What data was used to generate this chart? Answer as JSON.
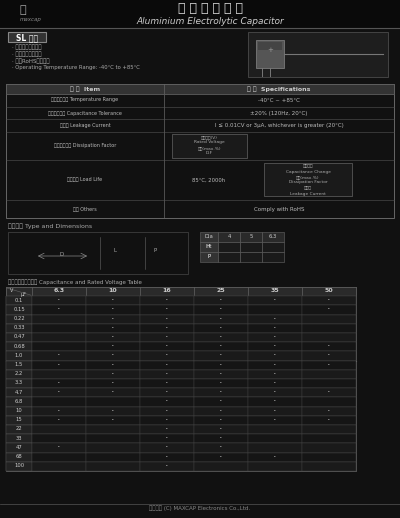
{
  "bg_color": "#1a1a1a",
  "page_bg": "#111111",
  "white": "#ffffff",
  "light_gray": "#e0e0e0",
  "mid_gray": "#888888",
  "dark_gray": "#444444",
  "table_header_bg": "#555555",
  "table_row_bg": "#222222",
  "table_border": "#666666",
  "text_color": "#cccccc",
  "title_cn": "醒 電 解 電 容 器",
  "title_en": "Aluminium Electrolytic Capacitor",
  "brand_cn": "進",
  "brand_en": "maxcap",
  "series": "SL 系列",
  "features": [
    "‧ 高信類性，長寳命",
    "‧ 小型化，標準系列",
    "‧ 符合RoHS環保規範"
  ],
  "feature4": "‧ Operating Temperature Range: -40°C to +85°C",
  "spec_item_header": "項 目  Item",
  "spec_spec_header": "規 格  Specifications",
  "spec_rows": [
    {
      "item": "工作溫度範圍 Temperature Range",
      "spec": "-40°C ~ +85°C"
    },
    {
      "item": "靜電容外差率 Capacitance Tolerance",
      "spec": "±20% (120Hz, 20°C)"
    },
    {
      "item": "漏電流 Leakage Current",
      "spec": "I ≤ 0.01CV or 3μA, whichever is greater (20°C)"
    },
    {
      "item": "最大消耗因數 Dissipation Factor",
      "spec_box": "額定電壓(V)\nRated Voltage\n最大(max.%)\nD.F"
    },
    {
      "item": "負荷寳命 Load Life",
      "spec_text": "85°C, 2000h",
      "spec_box2": "容量變化\nCapacitance Change\n最大(max.%)\nDissipation Factor\n漏電流\nLeakage Current"
    },
    {
      "item": "其它 Others",
      "spec": "Comply with RoHS"
    }
  ],
  "dim_label": "零件尺寸 Type and Dimensions",
  "dim_table": {
    "headers": [
      "Dia",
      "4",
      "5",
      "6.3"
    ],
    "rows": [
      [
        "Ht",
        "",
        "",
        ""
      ],
      [
        "P",
        "",
        "",
        ""
      ]
    ]
  },
  "cap_table_label": "標準尺寸及訂購資訊 Capacitance and Rated Voltage Table",
  "voltage_cols": [
    "6.3",
    "10",
    "16",
    "25",
    "35",
    "50"
  ],
  "cap_values": [
    "0.1",
    "0.15",
    "0.22",
    "0.33",
    "0.47",
    "0.68",
    "1.0",
    "1.5",
    "2.2",
    "3.3",
    "4.7",
    "6.8",
    "10",
    "15",
    "22",
    "33",
    "47",
    "68",
    "100"
  ],
  "available": {
    "0.1": [
      "6.3",
      "10",
      "16",
      "25",
      "35",
      "50"
    ],
    "0.15": [
      "6.3",
      "10",
      "16",
      "25",
      "50"
    ],
    "0.22": [
      "10",
      "16",
      "25",
      "35"
    ],
    "0.33": [
      "10",
      "16",
      "25",
      "35"
    ],
    "0.47": [
      "10",
      "16",
      "25",
      "35"
    ],
    "0.68": [
      "10",
      "16",
      "25",
      "35",
      "50"
    ],
    "1.0": [
      "6.3",
      "10",
      "16",
      "25",
      "35",
      "50"
    ],
    "1.5": [
      "6.3",
      "10",
      "16",
      "25",
      "35",
      "50"
    ],
    "2.2": [
      "10",
      "16",
      "25",
      "35"
    ],
    "3.3": [
      "6.3",
      "10",
      "16",
      "25",
      "35"
    ],
    "4.7": [
      "6.3",
      "10",
      "16",
      "25",
      "35",
      "50"
    ],
    "6.8": [
      "16",
      "25",
      "35"
    ],
    "10": [
      "6.3",
      "10",
      "16",
      "25",
      "35",
      "50"
    ],
    "15": [
      "6.3",
      "10",
      "16",
      "25",
      "35",
      "50"
    ],
    "22": [
      "16",
      "25"
    ],
    "33": [
      "16",
      "25"
    ],
    "47": [
      "6.3",
      "16",
      "25"
    ],
    "68": [
      "16",
      "25",
      "35"
    ],
    "100": [
      "16"
    ]
  },
  "footer": "版權所有 (C) MAXCAP Electronics Co.,Ltd."
}
